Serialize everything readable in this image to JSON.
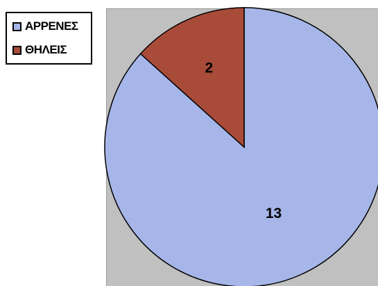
{
  "chart_data": {
    "type": "pie",
    "categories": [
      "ΑΡΡΕΝΕΣ",
      "ΘΗΛΕΙΣ"
    ],
    "values": [
      13,
      2
    ],
    "data_labels": [
      "13",
      "2"
    ],
    "colors": [
      "#a6b6e8",
      "#a94b39"
    ],
    "plot_background": "#c0c0c0",
    "legend_position": "top-left",
    "start_angle_deg": 0,
    "direction": "counterclockwise-first-slice-last"
  }
}
